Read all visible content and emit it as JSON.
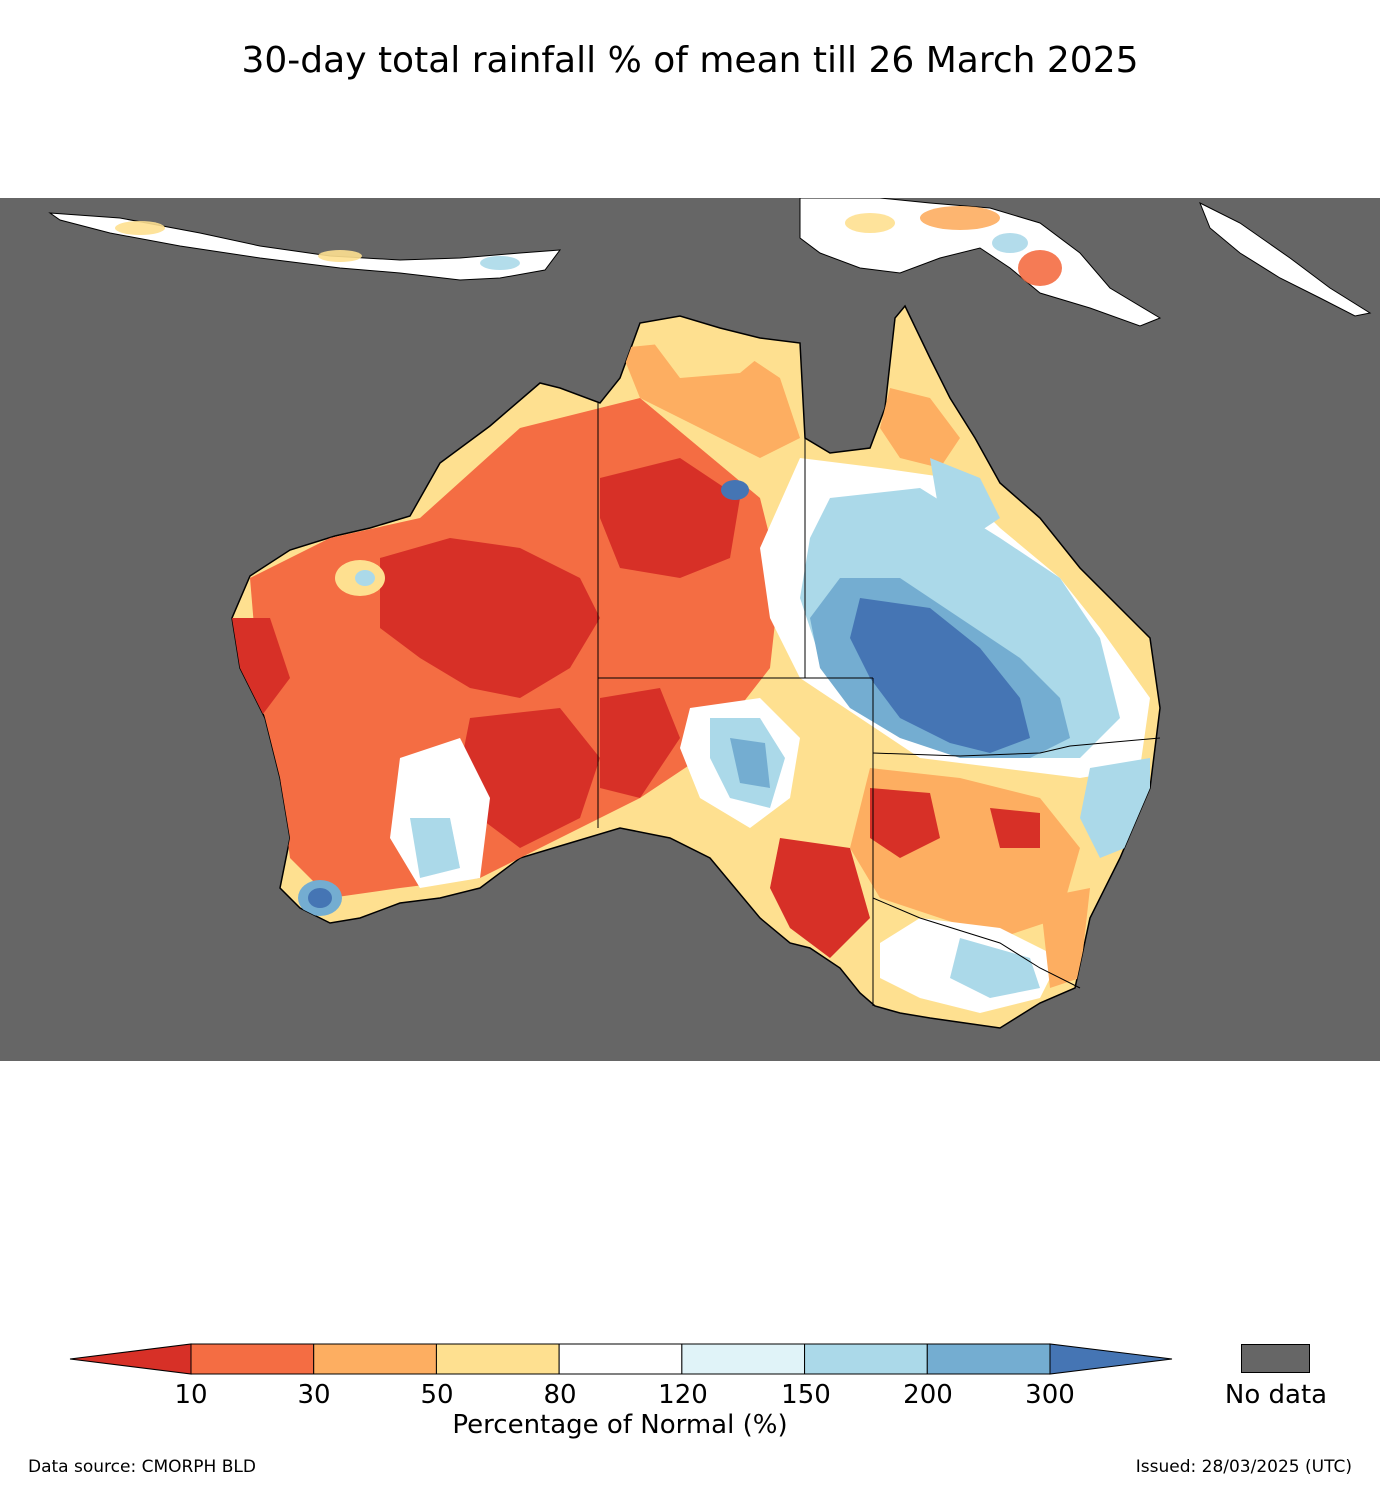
{
  "title": "30-day total rainfall % of mean till 26 March 2025",
  "colorbar": {
    "label": "Percentage of Normal (%)",
    "ticks": [
      "10",
      "30",
      "50",
      "80",
      "120",
      "150",
      "200",
      "300"
    ],
    "colors": [
      "#d73027",
      "#f46d43",
      "#fdae61",
      "#fee090",
      "#ffffff",
      "#e0f3f8",
      "#abd9e9",
      "#74add1",
      "#4575b4"
    ],
    "nodata_label": "No data",
    "nodata_color": "#666666"
  },
  "footer": {
    "source": "Data source: CMORPH BLD",
    "issued": "Issued: 28/03/2025 (UTC)"
  }
}
